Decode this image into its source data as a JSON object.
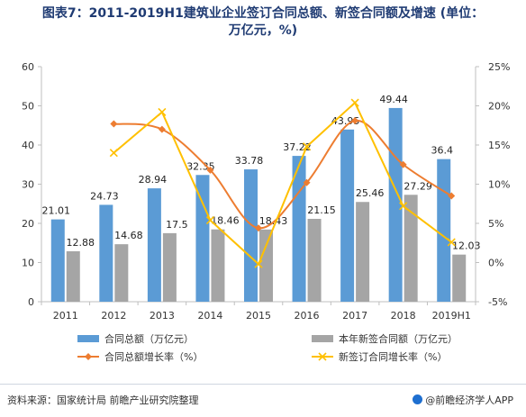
{
  "title": "图表7：2011-2019H1建筑业企业签订合同总额、新签合同额及增速 (单位：",
  "title_line2": "万亿元，%)",
  "chart_data": {
    "type": "bar",
    "categories": [
      "2011",
      "2012",
      "2013",
      "2014",
      "2015",
      "2016",
      "2017",
      "2018",
      "2019H1"
    ],
    "series": [
      {
        "name": "合同总额（万亿元）",
        "type": "bar",
        "axis": "left",
        "color": "#5b9bd5",
        "values": [
          21.01,
          24.73,
          28.94,
          32.35,
          33.78,
          37.22,
          43.95,
          49.44,
          36.4
        ]
      },
      {
        "name": "本年新签合同额（万亿元）",
        "type": "bar",
        "axis": "left",
        "color": "#a5a5a5",
        "values": [
          12.88,
          14.68,
          17.5,
          18.46,
          18.43,
          21.15,
          25.46,
          27.29,
          12.03
        ]
      },
      {
        "name": "合同总额增长率（%）",
        "type": "line",
        "axis": "right",
        "color": "#ed7d31",
        "marker": "diamond",
        "smooth": true,
        "values": [
          null,
          17.7,
          17.0,
          11.8,
          4.4,
          10.2,
          18.1,
          12.5,
          8.5
        ]
      },
      {
        "name": "新签订合同增长率（%）",
        "type": "line",
        "axis": "right",
        "color": "#ffc000",
        "marker": "x",
        "values": [
          null,
          14.0,
          19.2,
          5.4,
          -0.2,
          14.8,
          20.4,
          7.2,
          2.6
        ]
      }
    ],
    "ylim_left": [
      0,
      60
    ],
    "yticks_left": [
      "0",
      "10",
      "20",
      "30",
      "40",
      "50",
      "60"
    ],
    "ylim_right": [
      -5,
      25
    ],
    "yticks_right": [
      "-5%",
      "0%",
      "5%",
      "10%",
      "15%",
      "20%",
      "25%"
    ],
    "legend_placement": "bottom"
  },
  "footer": {
    "source": "资料来源：国家统计局 前瞻产业研究院整理",
    "brand": "@前瞻经济学人APP"
  }
}
